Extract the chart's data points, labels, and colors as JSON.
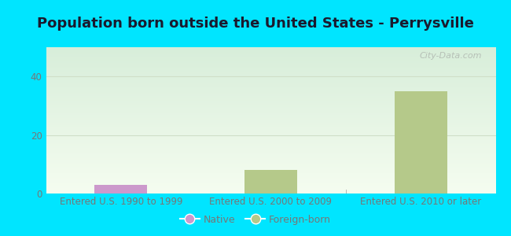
{
  "title": "Population born outside the United States - Perrysville",
  "background_color": "#00e5ff",
  "categories": [
    "Entered U.S. 1990 to 1999",
    "Entered U.S. 2000 to 2009",
    "Entered U.S. 2010 or later"
  ],
  "native_values": [
    3,
    0,
    0
  ],
  "foreign_values": [
    0,
    8,
    35
  ],
  "native_color": "#cc99cc",
  "foreign_color": "#b5c98a",
  "ylim": [
    0,
    50
  ],
  "yticks": [
    0,
    20,
    40
  ],
  "bar_width": 0.35,
  "watermark": "City-Data.com",
  "legend_native": "Native",
  "legend_foreign": "Foreign-born",
  "title_fontsize": 13,
  "tick_fontsize": 8.5,
  "legend_fontsize": 9,
  "plot_bg_color": "#e8f5e2",
  "grid_color": "#d0dfc8",
  "tick_color": "#777777"
}
